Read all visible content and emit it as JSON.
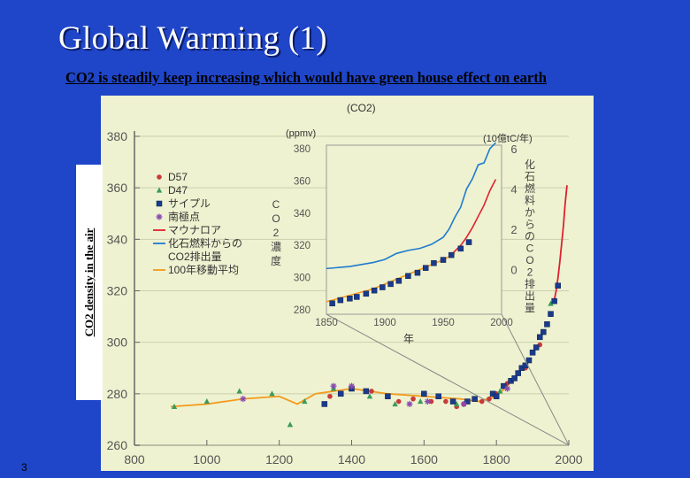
{
  "slide": {
    "title": "Global Warming (1)",
    "subtitle": "CO2 is steadily keep increasing which would have green house effect on earth",
    "ylabel": "CO2 density in the air",
    "page_number": "3"
  },
  "colors": {
    "background": "#1f45c8",
    "panel": "#eef2d0",
    "mauna_loa": "#e02030",
    "emissions": "#1e7bd0",
    "moving_avg": "#f39a1c"
  },
  "chart_data": [
    {
      "type": "scatter",
      "title": "(CO2)",
      "xlabel": "",
      "ylabel": "",
      "xlim": [
        800,
        2000
      ],
      "ylim": [
        260,
        380
      ],
      "xticks": [
        "800",
        "1000",
        "1200",
        "1400",
        "1600",
        "1800",
        "2000"
      ],
      "yticks": [
        "260",
        "280",
        "300",
        "320",
        "340",
        "360",
        "380"
      ],
      "legend": [
        "D57",
        "D47",
        "サイプル",
        "南極点",
        "マウナロア",
        "化石燃料からの",
        "CO2排出量",
        "100年移動平均"
      ],
      "series": [
        {
          "name": "D57",
          "marker": "circle",
          "color": "#c83a3a",
          "points": [
            [
              1340,
              279
            ],
            [
              1455,
              281
            ],
            [
              1530,
              277
            ],
            [
              1570,
              278
            ],
            [
              1620,
              277
            ],
            [
              1660,
              277
            ],
            [
              1690,
              275
            ],
            [
              1710,
              276
            ],
            [
              1760,
              277
            ],
            [
              1780,
              278
            ],
            [
              1800,
              280
            ],
            [
              1830,
              284
            ],
            [
              1880,
              290
            ],
            [
              1920,
              299
            ]
          ]
        },
        {
          "name": "D47",
          "marker": "triangle",
          "color": "#3a9a5a",
          "points": [
            [
              910,
              275
            ],
            [
              1000,
              277
            ],
            [
              1090,
              281
            ],
            [
              1180,
              280
            ],
            [
              1230,
              268
            ],
            [
              1270,
              277
            ],
            [
              1350,
              282
            ],
            [
              1450,
              279
            ],
            [
              1520,
              276
            ],
            [
              1590,
              277
            ],
            [
              1690,
              276
            ],
            [
              1810,
              281
            ],
            [
              1950,
              315
            ]
          ]
        },
        {
          "name": "サイプル",
          "marker": "square",
          "color": "#1a3a8c",
          "points": [
            [
              1325,
              276
            ],
            [
              1370,
              280
            ],
            [
              1400,
              282
            ],
            [
              1440,
              281
            ],
            [
              1500,
              279
            ],
            [
              1600,
              280
            ],
            [
              1640,
              279
            ],
            [
              1680,
              277
            ],
            [
              1720,
              277
            ],
            [
              1740,
              278
            ],
            [
              1790,
              280
            ],
            [
              1800,
              279
            ],
            [
              1820,
              283
            ],
            [
              1840,
              285
            ],
            [
              1850,
              286
            ],
            [
              1860,
              288
            ],
            [
              1870,
              290
            ],
            [
              1880,
              291
            ],
            [
              1890,
              293
            ],
            [
              1900,
              296
            ],
            [
              1910,
              298
            ],
            [
              1920,
              302
            ],
            [
              1930,
              304
            ],
            [
              1940,
              307
            ],
            [
              1950,
              311
            ],
            [
              1960,
              316
            ],
            [
              1970,
              322
            ]
          ]
        },
        {
          "name": "南極点",
          "marker": "star",
          "color": "#8a4ab0",
          "points": [
            [
              1100,
              278
            ],
            [
              1350,
              283
            ],
            [
              1400,
              283
            ],
            [
              1560,
              276
            ],
            [
              1610,
              277
            ],
            [
              1710,
              276
            ],
            [
              1830,
              282
            ]
          ]
        }
      ],
      "lines": [
        {
          "name": "マウナロア",
          "color": "#e02030",
          "x": [
            1958,
            1965,
            1970,
            1975,
            1980,
            1985,
            1990,
            1995
          ],
          "y": [
            315,
            320,
            325,
            331,
            338,
            345,
            354,
            361
          ]
        },
        {
          "name": "100年移動平均",
          "color": "#f39a1c",
          "x": [
            900,
            1000,
            1100,
            1200,
            1250,
            1300,
            1400,
            1500,
            1600,
            1700,
            1750,
            1800,
            1830
          ],
          "y": [
            275,
            276,
            278,
            279,
            276,
            280,
            282,
            280,
            279,
            278,
            277,
            279,
            283
          ]
        }
      ]
    },
    {
      "type": "line",
      "title": "",
      "xlabel": "年",
      "ylabel": "CO2濃度",
      "ylabel_units": "(ppmv)",
      "y2label": "化石燃料からのCO2排出量",
      "y2label_units": "(10億tC/年)",
      "xlim": [
        1850,
        2000
      ],
      "ylim": [
        280,
        380
      ],
      "y2lim": [
        -2,
        6
      ],
      "xticks": [
        "1850",
        "1900",
        "1950",
        "2000"
      ],
      "yticks": [
        "280",
        "300",
        "320",
        "340",
        "360",
        "380"
      ],
      "y2ticks": [
        "0",
        "2",
        "4",
        "6"
      ],
      "series": [
        {
          "name": "化石燃料からの CO2排出量",
          "axis": "right",
          "color": "#1e7bd0",
          "x": [
            1850,
            1860,
            1870,
            1880,
            1890,
            1900,
            1910,
            1920,
            1930,
            1940,
            1950,
            1955,
            1960,
            1965,
            1970,
            1975,
            1980,
            1985,
            1990,
            1995
          ],
          "y": [
            0.05,
            0.1,
            0.15,
            0.25,
            0.35,
            0.5,
            0.8,
            0.95,
            1.05,
            1.25,
            1.6,
            2.0,
            2.6,
            3.1,
            4.0,
            4.5,
            5.2,
            5.3,
            6.0,
            6.3
          ]
        },
        {
          "name": "マウナロア",
          "axis": "left",
          "color": "#e02030",
          "x": [
            1958,
            1965,
            1970,
            1975,
            1980,
            1985,
            1990,
            1995
          ],
          "y": [
            315,
            320,
            325,
            331,
            338,
            345,
            354,
            361
          ]
        },
        {
          "name": "100年移動平均",
          "axis": "left",
          "color": "#f39a1c",
          "x": [
            1850,
            1860,
            1870,
            1880,
            1890,
            1900,
            1910,
            1920,
            1930,
            1940,
            1950,
            1960
          ],
          "y": [
            285,
            287,
            289,
            291,
            293,
            296,
            299,
            302,
            305,
            308,
            311,
            315
          ]
        },
        {
          "name": "サイプル",
          "axis": "left",
          "marker": "square",
          "color": "#1a3a8c",
          "x": [
            1855,
            1862,
            1870,
            1876,
            1884,
            1891,
            1898,
            1905,
            1912,
            1920,
            1928,
            1935,
            1942,
            1950,
            1957,
            1965,
            1972
          ],
          "y": [
            284,
            286,
            287,
            288,
            290,
            292,
            294,
            296,
            298,
            301,
            303,
            306,
            309,
            311,
            314,
            318,
            322
          ]
        }
      ]
    }
  ]
}
